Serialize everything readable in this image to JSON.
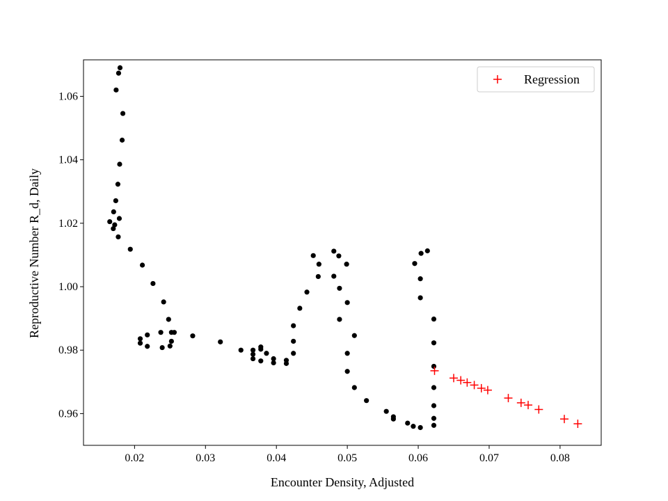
{
  "chart_data": {
    "type": "scatter",
    "xlabel": "Encounter Density, Adjusted",
    "ylabel": "Reproductive Number R_d, Daily",
    "xlim": [
      0.0128,
      0.0858
    ],
    "ylim": [
      0.95,
      1.0715
    ],
    "x_ticks": [
      0.02,
      0.03,
      0.04,
      0.05,
      0.06,
      0.07,
      0.08
    ],
    "x_tick_labels": [
      "0.02",
      "0.03",
      "0.04",
      "0.05",
      "0.06",
      "0.07",
      "0.08"
    ],
    "y_ticks": [
      0.96,
      0.98,
      1.0,
      1.02,
      1.04,
      1.06
    ],
    "y_tick_labels": [
      "0.96",
      "0.98",
      "1.00",
      "1.02",
      "1.04",
      "1.06"
    ],
    "legend_position": "top-right",
    "grid": false,
    "series": [
      {
        "style": "dot",
        "color": "#000000",
        "points": [
          [
            0.01795,
            1.069
          ],
          [
            0.01775,
            1.0673
          ],
          [
            0.0174,
            1.062
          ],
          [
            0.01835,
            1.0546
          ],
          [
            0.01825,
            1.0462
          ],
          [
            0.0179,
            1.0386
          ],
          [
            0.01765,
            1.0323
          ],
          [
            0.01735,
            1.0271
          ],
          [
            0.01705,
            1.0236
          ],
          [
            0.0165,
            1.0205
          ],
          [
            0.01785,
            1.0215
          ],
          [
            0.0172,
            1.0195
          ],
          [
            0.017,
            1.0183
          ],
          [
            0.0177,
            1.0157
          ],
          [
            0.0194,
            1.0118
          ],
          [
            0.0211,
            1.0068
          ],
          [
            0.0226,
            1.001
          ],
          [
            0.0241,
            0.9952
          ],
          [
            0.0248,
            0.9897
          ],
          [
            0.0252,
            0.9856
          ],
          [
            0.0256,
            0.9856
          ],
          [
            0.0237,
            0.9856
          ],
          [
            0.0218,
            0.9848
          ],
          [
            0.0208,
            0.9836
          ],
          [
            0.0208,
            0.9822
          ],
          [
            0.0252,
            0.9828
          ],
          [
            0.025,
            0.9813
          ],
          [
            0.0218,
            0.9812
          ],
          [
            0.0239,
            0.9808
          ],
          [
            0.0282,
            0.9845
          ],
          [
            0.0321,
            0.9826
          ],
          [
            0.035,
            0.98
          ],
          [
            0.0367,
            0.98
          ],
          [
            0.0367,
            0.9787
          ],
          [
            0.0367,
            0.9773
          ],
          [
            0.0378,
            0.981
          ],
          [
            0.0378,
            0.9803
          ],
          [
            0.0386,
            0.979
          ],
          [
            0.0378,
            0.9766
          ],
          [
            0.0396,
            0.9773
          ],
          [
            0.0396,
            0.976
          ],
          [
            0.0414,
            0.9768
          ],
          [
            0.0414,
            0.9758
          ],
          [
            0.0424,
            0.979
          ],
          [
            0.0424,
            0.9828
          ],
          [
            0.0424,
            0.9877
          ],
          [
            0.0433,
            0.9932
          ],
          [
            0.0443,
            0.9983
          ],
          [
            0.0459,
            1.0032
          ],
          [
            0.0452,
            1.0098
          ],
          [
            0.046,
            1.0071
          ],
          [
            0.0481,
            1.0112
          ],
          [
            0.0488,
            1.0097
          ],
          [
            0.0499,
            1.0071
          ],
          [
            0.0481,
            1.0033
          ],
          [
            0.0489,
            0.9995
          ],
          [
            0.05,
            0.995
          ],
          [
            0.0489,
            0.9897
          ],
          [
            0.051,
            0.9846
          ],
          [
            0.05,
            0.979
          ],
          [
            0.05,
            0.9733
          ],
          [
            0.051,
            0.9682
          ],
          [
            0.0527,
            0.9641
          ],
          [
            0.0555,
            0.9607
          ],
          [
            0.0565,
            0.959
          ],
          [
            0.0565,
            0.9583
          ],
          [
            0.0585,
            0.957
          ],
          [
            0.0593,
            0.956
          ],
          [
            0.0603,
            0.9556
          ],
          [
            0.0595,
            1.0073
          ],
          [
            0.0604,
            1.0105
          ],
          [
            0.0613,
            1.0113
          ],
          [
            0.0603,
            1.0025
          ],
          [
            0.0603,
            0.9965
          ],
          [
            0.0622,
            0.9898
          ],
          [
            0.0622,
            0.9823
          ],
          [
            0.0622,
            0.9749
          ],
          [
            0.0622,
            0.9682
          ],
          [
            0.0622,
            0.9625
          ],
          [
            0.0622,
            0.9585
          ],
          [
            0.0622,
            0.9563
          ]
        ]
      },
      {
        "name": "Regression",
        "style": "plus",
        "color": "#ff0000",
        "points": [
          [
            0.0623,
            0.9735
          ],
          [
            0.065,
            0.9712
          ],
          [
            0.066,
            0.9705
          ],
          [
            0.0669,
            0.9698
          ],
          [
            0.0679,
            0.969
          ],
          [
            0.0689,
            0.968
          ],
          [
            0.0698,
            0.9674
          ],
          [
            0.0727,
            0.9649
          ],
          [
            0.0745,
            0.9634
          ],
          [
            0.0755,
            0.9627
          ],
          [
            0.077,
            0.9613
          ],
          [
            0.0806,
            0.9583
          ],
          [
            0.0825,
            0.9568
          ]
        ]
      }
    ]
  }
}
